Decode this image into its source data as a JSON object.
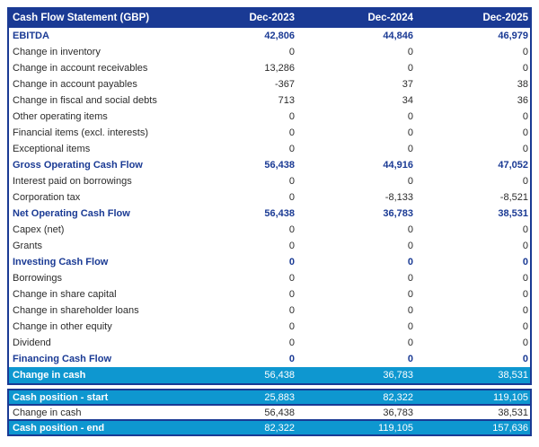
{
  "colors": {
    "navy": "#1a3a94",
    "light_blue": "#0e97d0",
    "body_text": "#2b2b2b",
    "header_text": "#ffffff"
  },
  "header": {
    "title": "Cash Flow Statement (GBP)",
    "columns": [
      "Dec-2023",
      "Dec-2024",
      "Dec-2025"
    ]
  },
  "main": {
    "rows": [
      {
        "label": "EBITDA",
        "values": [
          "42,806",
          "44,846",
          "46,979"
        ],
        "style": "bold"
      },
      {
        "label": "Change in inventory",
        "values": [
          "0",
          "0",
          "0"
        ],
        "style": "normal"
      },
      {
        "label": "Change in account receivables",
        "values": [
          "13,286",
          "0",
          "0"
        ],
        "style": "normal"
      },
      {
        "label": "Change in account payables",
        "values": [
          "-367",
          "37",
          "38"
        ],
        "style": "normal"
      },
      {
        "label": "Change in fiscal and social debts",
        "values": [
          "713",
          "34",
          "36"
        ],
        "style": "normal"
      },
      {
        "label": "Other operating items",
        "values": [
          "0",
          "0",
          "0"
        ],
        "style": "normal"
      },
      {
        "label": "Financial items (excl. interests)",
        "values": [
          "0",
          "0",
          "0"
        ],
        "style": "normal"
      },
      {
        "label": "Exceptional items",
        "values": [
          "0",
          "0",
          "0"
        ],
        "style": "normal"
      },
      {
        "label": "Gross Operating Cash Flow",
        "values": [
          "56,438",
          "44,916",
          "47,052"
        ],
        "style": "bold"
      },
      {
        "label": "Interest paid on borrowings",
        "values": [
          "0",
          "0",
          "0"
        ],
        "style": "normal"
      },
      {
        "label": "Corporation tax",
        "values": [
          "0",
          "-8,133",
          "-8,521"
        ],
        "style": "normal"
      },
      {
        "label": "Net Operating Cash Flow",
        "values": [
          "56,438",
          "36,783",
          "38,531"
        ],
        "style": "bold"
      },
      {
        "label": "Capex (net)",
        "values": [
          "0",
          "0",
          "0"
        ],
        "style": "normal"
      },
      {
        "label": "Grants",
        "values": [
          "0",
          "0",
          "0"
        ],
        "style": "normal"
      },
      {
        "label": "Investing Cash Flow",
        "values": [
          "0",
          "0",
          "0"
        ],
        "style": "bold"
      },
      {
        "label": "Borrowings",
        "values": [
          "0",
          "0",
          "0"
        ],
        "style": "normal"
      },
      {
        "label": "Change in share capital",
        "values": [
          "0",
          "0",
          "0"
        ],
        "style": "normal"
      },
      {
        "label": "Change in shareholder loans",
        "values": [
          "0",
          "0",
          "0"
        ],
        "style": "normal"
      },
      {
        "label": "Change in other equity",
        "values": [
          "0",
          "0",
          "0"
        ],
        "style": "normal"
      },
      {
        "label": "Dividend",
        "values": [
          "0",
          "0",
          "0"
        ],
        "style": "normal"
      },
      {
        "label": "Financing Cash Flow",
        "values": [
          "0",
          "0",
          "0"
        ],
        "style": "bold"
      },
      {
        "label": "Change in cash",
        "values": [
          "56,438",
          "36,783",
          "38,531"
        ],
        "style": "highlight"
      }
    ]
  },
  "summary": {
    "rows": [
      {
        "label": "Cash position - start",
        "values": [
          "25,883",
          "82,322",
          "119,105"
        ],
        "style": "highlight"
      },
      {
        "label": "Change in cash",
        "values": [
          "56,438",
          "36,783",
          "38,531"
        ],
        "style": "normal"
      },
      {
        "label": "Cash position - end",
        "values": [
          "82,322",
          "119,105",
          "157,636"
        ],
        "style": "highlight"
      }
    ]
  }
}
